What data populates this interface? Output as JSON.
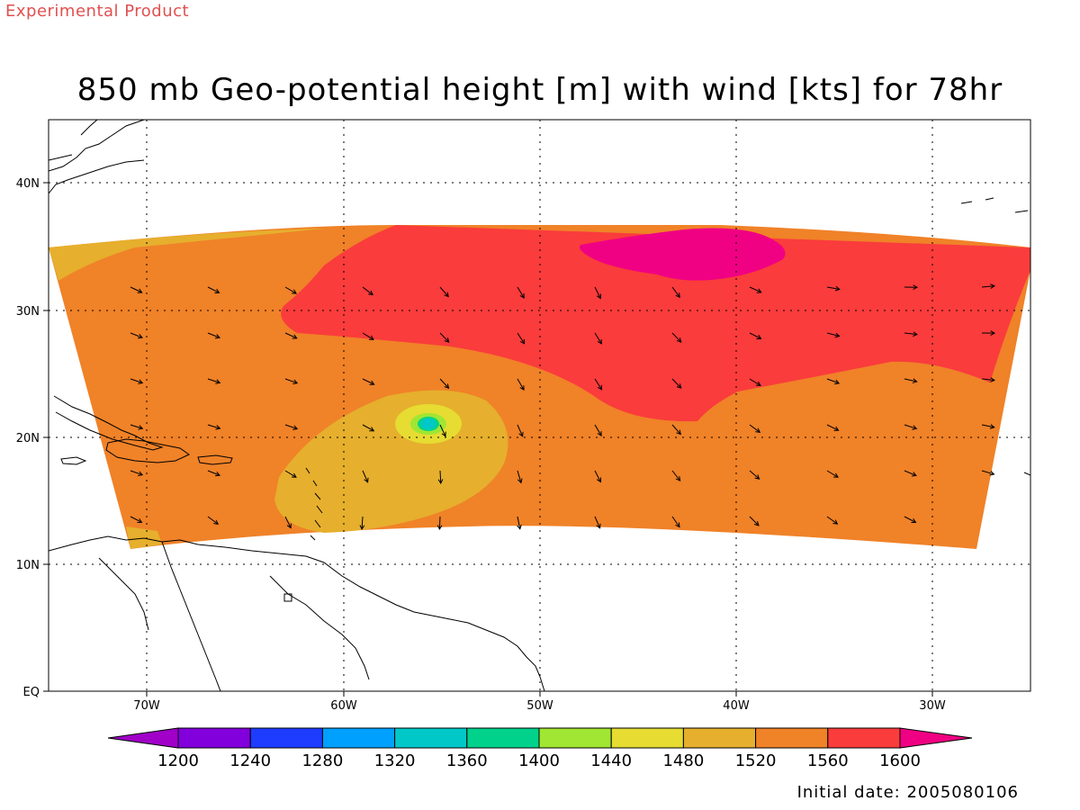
{
  "header": {
    "experimental_label": "Experimental Product",
    "title": "850 mb Geo-potential height [m] with wind [kts] for 78hr",
    "initial_date": "Initial date: 2005080106"
  },
  "map": {
    "lat_labels": [
      "EQ",
      "10N",
      "20N",
      "30N",
      "40N"
    ],
    "lon_labels": [
      "70W",
      "60W",
      "50W",
      "40W",
      "30W"
    ],
    "coastline_color": "#000000",
    "grid_style": "dotted"
  },
  "colorbar": {
    "levels": [
      "1200",
      "1240",
      "1280",
      "1320",
      "1360",
      "1400",
      "1440",
      "1480",
      "1520",
      "1560",
      "1600"
    ],
    "colors": [
      "#a000c8",
      "#8200dc",
      "#1e3cff",
      "#00a0ff",
      "#00c8c8",
      "#00d28c",
      "#a0e632",
      "#e6dc32",
      "#e6af2d",
      "#f08228",
      "#fa3c3c",
      "#f00082"
    ]
  }
}
